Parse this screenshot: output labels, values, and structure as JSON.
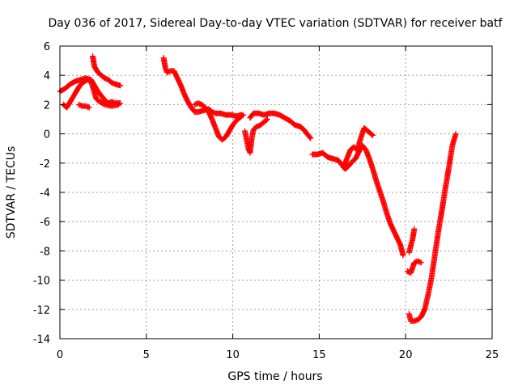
{
  "chart_data": {
    "type": "scatter",
    "title": "Day 036 of 2017, Sidereal Day-to-day VTEC variation (SDTVAR) for receiver batf",
    "xlabel": "GPS time / hours",
    "ylabel": "SDTVAR / TECUs",
    "xlim": [
      0,
      25
    ],
    "ylim": [
      -14,
      6
    ],
    "xticks": [
      0,
      5,
      10,
      15,
      20,
      25
    ],
    "yticks": [
      -14,
      -12,
      -10,
      -8,
      -6,
      -4,
      -2,
      0,
      2,
      4,
      6
    ],
    "grid": true,
    "legend": "none",
    "marker": "plus",
    "color": "#ff0000",
    "series": [
      {
        "values": [
          [
            0.0,
            2.9
          ],
          [
            0.3,
            3.1
          ],
          [
            0.6,
            3.4
          ],
          [
            0.9,
            3.6
          ],
          [
            1.2,
            3.7
          ],
          [
            1.5,
            3.8
          ],
          [
            1.8,
            3.7
          ],
          [
            2.0,
            3.3
          ],
          [
            2.2,
            2.9
          ],
          [
            2.4,
            2.6
          ],
          [
            2.6,
            2.3
          ],
          [
            2.8,
            2.1
          ],
          [
            3.0,
            2.2
          ],
          [
            3.2,
            2.1
          ],
          [
            3.5,
            2.1
          ]
        ]
      },
      {
        "values": [
          [
            0.2,
            2.0
          ],
          [
            0.4,
            1.8
          ],
          [
            0.6,
            2.2
          ],
          [
            0.9,
            2.8
          ],
          [
            1.1,
            3.2
          ],
          [
            1.3,
            3.5
          ],
          [
            1.6,
            3.7
          ],
          [
            1.8,
            3.6
          ],
          [
            1.9,
            3.2
          ],
          [
            2.0,
            2.8
          ],
          [
            2.1,
            2.4
          ],
          [
            2.3,
            2.2
          ],
          [
            2.6,
            2.0
          ],
          [
            3.0,
            1.9
          ],
          [
            3.4,
            2.0
          ]
        ]
      },
      {
        "values": [
          [
            1.1,
            2.0
          ],
          [
            1.3,
            1.9
          ],
          [
            1.5,
            1.9
          ],
          [
            1.7,
            1.8
          ]
        ]
      },
      {
        "values": [
          [
            1.9,
            5.3
          ],
          [
            2.0,
            4.6
          ],
          [
            2.2,
            4.2
          ],
          [
            2.4,
            4.0
          ],
          [
            2.6,
            3.8
          ],
          [
            2.8,
            3.7
          ],
          [
            3.0,
            3.5
          ],
          [
            3.2,
            3.4
          ],
          [
            3.5,
            3.3
          ]
        ]
      },
      {
        "values": [
          [
            6.0,
            5.2
          ],
          [
            6.1,
            4.5
          ],
          [
            6.2,
            4.2
          ],
          [
            6.4,
            4.3
          ],
          [
            6.6,
            4.3
          ],
          [
            6.8,
            3.8
          ],
          [
            7.0,
            3.3
          ],
          [
            7.2,
            2.7
          ],
          [
            7.4,
            2.2
          ],
          [
            7.6,
            1.8
          ],
          [
            7.8,
            1.5
          ],
          [
            8.0,
            1.5
          ],
          [
            8.3,
            1.6
          ],
          [
            8.6,
            1.7
          ],
          [
            8.8,
            1.5
          ],
          [
            9.0,
            1.4
          ],
          [
            9.3,
            1.4
          ],
          [
            9.6,
            1.3
          ],
          [
            9.9,
            1.3
          ],
          [
            10.2,
            1.2
          ],
          [
            10.5,
            1.3
          ]
        ]
      },
      {
        "values": [
          [
            7.8,
            2.0
          ],
          [
            8.0,
            2.1
          ],
          [
            8.2,
            2.0
          ],
          [
            8.4,
            1.8
          ],
          [
            8.6,
            1.5
          ],
          [
            8.8,
            1.0
          ],
          [
            9.0,
            0.4
          ],
          [
            9.2,
            -0.2
          ],
          [
            9.4,
            -0.4
          ],
          [
            9.6,
            -0.2
          ],
          [
            9.8,
            0.2
          ],
          [
            10.0,
            0.6
          ],
          [
            10.2,
            0.9
          ],
          [
            10.4,
            1.1
          ],
          [
            10.6,
            1.3
          ]
        ]
      },
      {
        "values": [
          [
            10.7,
            0.2
          ],
          [
            10.8,
            -0.4
          ],
          [
            10.9,
            -1.0
          ],
          [
            11.0,
            -1.3
          ],
          [
            11.1,
            -0.3
          ],
          [
            11.2,
            0.3
          ],
          [
            11.4,
            0.5
          ],
          [
            11.6,
            0.6
          ],
          [
            11.8,
            0.8
          ],
          [
            12.0,
            1.0
          ]
        ]
      },
      {
        "values": [
          [
            11.0,
            1.1
          ],
          [
            11.2,
            1.4
          ],
          [
            11.5,
            1.4
          ],
          [
            11.8,
            1.3
          ],
          [
            12.1,
            1.4
          ],
          [
            12.4,
            1.4
          ],
          [
            12.7,
            1.3
          ],
          [
            13.0,
            1.1
          ],
          [
            13.3,
            0.9
          ],
          [
            13.6,
            0.6
          ],
          [
            13.9,
            0.5
          ],
          [
            14.1,
            0.3
          ],
          [
            14.3,
            0.0
          ],
          [
            14.5,
            -0.3
          ]
        ]
      },
      {
        "values": [
          [
            14.6,
            -1.4
          ],
          [
            14.9,
            -1.4
          ],
          [
            15.2,
            -1.3
          ],
          [
            15.5,
            -1.6
          ],
          [
            15.8,
            -1.7
          ],
          [
            16.1,
            -1.8
          ],
          [
            16.3,
            -2.1
          ],
          [
            16.5,
            -2.4
          ],
          [
            16.7,
            -2.2
          ],
          [
            16.9,
            -1.9
          ],
          [
            17.1,
            -1.7
          ],
          [
            17.3,
            -1.2
          ],
          [
            17.5,
            -0.8
          ],
          [
            17.7,
            -1.1
          ],
          [
            17.9,
            -1.7
          ],
          [
            18.1,
            -2.4
          ],
          [
            18.3,
            -3.2
          ],
          [
            18.5,
            -3.9
          ],
          [
            18.7,
            -4.6
          ],
          [
            18.9,
            -5.4
          ],
          [
            19.1,
            -6.1
          ],
          [
            19.3,
            -6.6
          ],
          [
            19.5,
            -7.1
          ],
          [
            19.7,
            -7.6
          ],
          [
            19.85,
            -8.3
          ]
        ]
      },
      {
        "values": [
          [
            16.4,
            -2.3
          ],
          [
            16.6,
            -1.7
          ],
          [
            16.8,
            -1.1
          ],
          [
            17.0,
            -0.9
          ],
          [
            17.2,
            -1.1
          ],
          [
            17.4,
            -0.3
          ],
          [
            17.6,
            0.4
          ],
          [
            17.8,
            0.2
          ],
          [
            18.0,
            0.0
          ],
          [
            18.1,
            -0.1
          ]
        ]
      },
      {
        "values": [
          [
            20.1,
            -9.4
          ],
          [
            20.3,
            -9.5
          ],
          [
            20.5,
            -8.8
          ],
          [
            20.7,
            -8.7
          ],
          [
            20.9,
            -8.8
          ]
        ]
      },
      {
        "values": [
          [
            20.2,
            -8.1
          ],
          [
            20.4,
            -7.2
          ],
          [
            20.5,
            -6.5
          ]
        ]
      },
      {
        "values": [
          [
            20.2,
            -12.3
          ],
          [
            20.3,
            -12.8
          ],
          [
            20.5,
            -12.8
          ],
          [
            20.7,
            -12.7
          ],
          [
            20.9,
            -12.5
          ],
          [
            21.1,
            -12.0
          ],
          [
            21.3,
            -11.0
          ],
          [
            21.5,
            -9.8
          ],
          [
            21.7,
            -8.2
          ],
          [
            21.9,
            -6.6
          ],
          [
            22.1,
            -5.2
          ],
          [
            22.3,
            -3.7
          ],
          [
            22.5,
            -2.3
          ],
          [
            22.7,
            -0.8
          ],
          [
            22.9,
            0.0
          ]
        ]
      }
    ]
  }
}
